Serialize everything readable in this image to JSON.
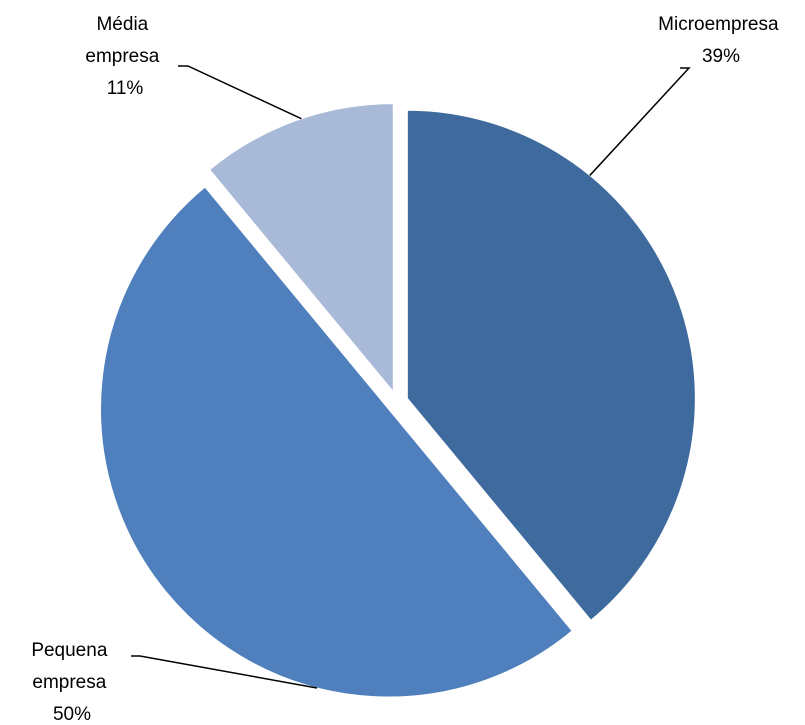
{
  "chart_data": {
    "type": "pie",
    "slices": [
      {
        "name": "Microempresa",
        "value": 39,
        "label": "39%",
        "color": "#3f6a9e"
      },
      {
        "name": "Pequena empresa",
        "value": 50,
        "label": "50%",
        "color": "#4f80bd"
      },
      {
        "name": "Média empresa",
        "value": 11,
        "label": "11%",
        "color": "#a9b9d8"
      }
    ],
    "exploded": true,
    "legend": "none",
    "data_labels": "outside-with-leader-lines"
  }
}
